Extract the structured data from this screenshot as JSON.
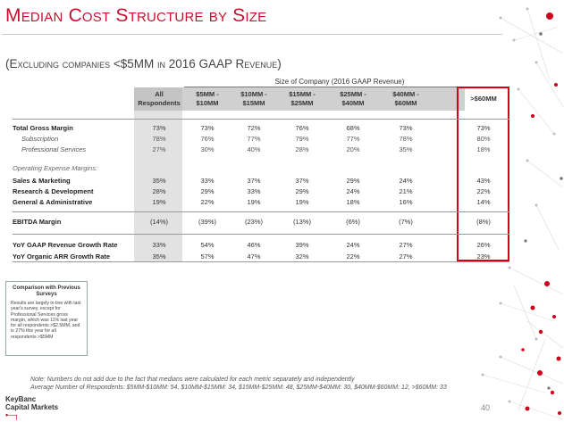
{
  "title": "Median Cost Structure by Size",
  "subtitle": "(Excluding companies <$5MM in 2016 GAAP Revenue)",
  "table": {
    "group_caption": "Size of Company (2016 GAAP Revenue)",
    "columns": [
      "All Respondents",
      "$5MM - $10MM",
      "$10MM - $15MM",
      "$15MM - $25MM",
      "$25MM - $40MM",
      "$40MM - $60MM",
      ">$60MM"
    ],
    "rows": [
      {
        "label": "Total Gross Margin",
        "style": "bold",
        "values": [
          "73%",
          "73%",
          "72%",
          "76%",
          "68%",
          "73%",
          "73%"
        ]
      },
      {
        "label": "Subscription",
        "style": "ital",
        "values": [
          "78%",
          "76%",
          "77%",
          "79%",
          "77%",
          "78%",
          "80%"
        ]
      },
      {
        "label": "Professional Services",
        "style": "ital",
        "values": [
          "27%",
          "30%",
          "40%",
          "28%",
          "20%",
          "35%",
          "18%"
        ]
      },
      {
        "label": "Operating Expense Margins:",
        "style": "grey",
        "values": []
      },
      {
        "label": "Sales & Marketing",
        "style": "bold",
        "values": [
          "35%",
          "33%",
          "37%",
          "37%",
          "29%",
          "24%",
          "43%"
        ]
      },
      {
        "label": "Research & Development",
        "style": "bold",
        "values": [
          "28%",
          "29%",
          "33%",
          "29%",
          "24%",
          "21%",
          "22%"
        ]
      },
      {
        "label": "General & Administrative",
        "style": "bold",
        "values": [
          "19%",
          "22%",
          "19%",
          "19%",
          "18%",
          "16%",
          "14%"
        ]
      },
      {
        "label": "EBITDA Margin",
        "style": "bold",
        "values": [
          "(14%)",
          "(39%)",
          "(23%)",
          "(13%)",
          "(6%)",
          "(7%)",
          "(8%)"
        ]
      },
      {
        "label": "YoY GAAP Revenue Growth Rate",
        "style": "bold",
        "values": [
          "33%",
          "54%",
          "46%",
          "39%",
          "24%",
          "27%",
          "26%"
        ]
      },
      {
        "label": "YoY Organic ARR Growth Rate",
        "style": "bold",
        "values": [
          "35%",
          "57%",
          "47%",
          "32%",
          "22%",
          "27%",
          "23%"
        ]
      }
    ]
  },
  "comparison": {
    "title": "Comparison with Previous Surveys",
    "body": "Results are largely in-line with last year's survey, except for Professional Services gross margin, which was 11% last year for all respondents >$2.5MM, and is 27% this year for all respondents >$5MM"
  },
  "footnote": {
    "line1": "Note: Numbers do not add due to the fact that medians were calculated for each metric separately and independently",
    "line2": "Average Number of Respondents: $5MM-$10MM: 54, $10MM-$15MM: 34, $15MM-$25MM: 48, $25MM-$40MM: 30, $40MM-$60MM: 12, >$60MM: 33"
  },
  "logo": {
    "line1": "KeyBanc",
    "line2": "Capital Markets"
  },
  "page_number": "40",
  "colors": {
    "accent": "#c8102e",
    "highlight_border": "#d0021b",
    "header_fill": "#d0d0d0",
    "all_column_fill": "#e2e2e2"
  }
}
